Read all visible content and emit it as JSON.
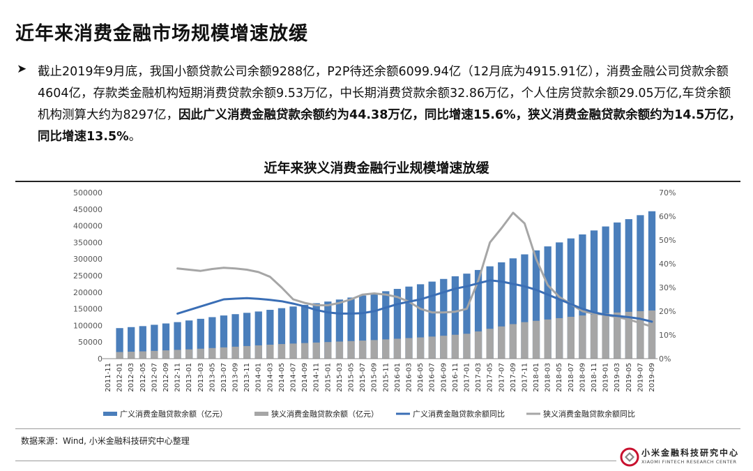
{
  "slide": {
    "title": "近年来消费金融市场规模增速放缓",
    "bullet_arrow": "➤",
    "bullet_text": "截止2019年9月底，我国小额贷款公司余额9288亿，P2P待还余额6099.94亿（12月底为4915.91亿），消费金融公司贷款余额4604亿，存款类金融机构短期消费贷款余额9.53万亿，中长期消费贷款余额32.86万亿，个人住房贷款余额29.05万亿,车贷余额机构测算大约为8297亿，",
    "bullet_bold": "因此广义消费金融贷款余额约为44.38万亿，同比增速15.6%，狭义消费金融贷款余额约为14.5万亿，同比增速13.5%",
    "bullet_end": "。",
    "source": "数据来源：Wind, 小米金融科技研究中心整理",
    "logo_cn": "小米金融科技研究中心",
    "logo_en": "XIAOMI FINTECH RESEARCH CENTER"
  },
  "colors": {
    "broad_bar": "#4a7ebb",
    "narrow_bar": "#a6a6a6",
    "broad_line": "#3a6eb5",
    "narrow_line": "#a6a6a6",
    "logo_red": "#c8102e"
  },
  "chart_data": {
    "type": "bar",
    "title": "近年来狭义消费金融行业规模增速放缓",
    "categories": [
      "2011-11",
      "2012-01",
      "2012-03",
      "2012-05",
      "2012-07",
      "2012-09",
      "2012-11",
      "2013-01",
      "2013-03",
      "2013-05",
      "2013-07",
      "2013-09",
      "2013-11",
      "2014-01",
      "2014-03",
      "2014-05",
      "2014-07",
      "2014-09",
      "2014-11",
      "2015-01",
      "2015-03",
      "2015-05",
      "2015-07",
      "2015-09",
      "2015-11",
      "2016-01",
      "2016-03",
      "2016-05",
      "2016-07",
      "2016-09",
      "2016-11",
      "2017-01",
      "2017-03",
      "2017-05",
      "2017-07",
      "2017-09",
      "2017-11",
      "2018-01",
      "2018-03",
      "2018-05",
      "2018-07",
      "2018-09",
      "2018-11",
      "2019-01",
      "2019-03",
      "2019-05",
      "2019-07",
      "2019-09"
    ],
    "bar_positions": [
      "2012-01",
      "2012-05",
      "2012-09",
      "2013-01",
      "2013-05",
      "2013-09",
      "2014-01",
      "2014-05",
      "2014-09",
      "2015-01",
      "2015-05",
      "2015-09",
      "2016-01",
      "2016-05",
      "2016-09",
      "2017-01",
      "2017-05",
      "2017-09",
      "2018-01",
      "2018-05",
      "2018-09",
      "2019-01",
      "2019-05",
      "2019-09"
    ],
    "left_ylim": [
      0,
      500000
    ],
    "left_yticks": [
      "0",
      "50000",
      "100000",
      "150000",
      "200000",
      "250000",
      "300000",
      "350000",
      "400000",
      "450000",
      "500000"
    ],
    "right_ylim": [
      0,
      70
    ],
    "right_yticks": [
      "0%",
      "10%",
      "20%",
      "30%",
      "40%",
      "50%",
      "60%",
      "70%"
    ],
    "series": [
      {
        "name": "广义消费金融贷款余额（亿元）",
        "kind": "bar",
        "axis": "left",
        "x": [
          "2012-01",
          "2012-03",
          "2012-05",
          "2012-07",
          "2012-09",
          "2012-11",
          "2013-01",
          "2013-03",
          "2013-05",
          "2013-07",
          "2013-09",
          "2013-11",
          "2014-01",
          "2014-03",
          "2014-05",
          "2014-07",
          "2014-09",
          "2014-11",
          "2015-01",
          "2015-03",
          "2015-05",
          "2015-07",
          "2015-09",
          "2015-11",
          "2016-01",
          "2016-03",
          "2016-05",
          "2016-07",
          "2016-09",
          "2016-11",
          "2017-01",
          "2017-03",
          "2017-05",
          "2017-07",
          "2017-09",
          "2017-11",
          "2018-01",
          "2018-03",
          "2018-05",
          "2018-07",
          "2018-09",
          "2018-11",
          "2019-01",
          "2019-03",
          "2019-05",
          "2019-07",
          "2019-09"
        ],
        "values": [
          92000,
          95000,
          98000,
          102000,
          106000,
          110000,
          115000,
          120000,
          125000,
          130000,
          134000,
          138000,
          142000,
          147000,
          152000,
          157000,
          162000,
          167000,
          172000,
          178000,
          184000,
          190000,
          196000,
          203000,
          210000,
          217000,
          224000,
          232000,
          240000,
          248000,
          256000,
          267000,
          278000,
          290000,
          302000,
          314000,
          326000,
          338000,
          350000,
          362000,
          374000,
          386000,
          398000,
          410000,
          420000,
          432000,
          443800
        ]
      },
      {
        "name": "狭义消费金融贷款余额（亿元）",
        "kind": "bar",
        "axis": "left",
        "x": [
          "2012-01",
          "2012-03",
          "2012-05",
          "2012-07",
          "2012-09",
          "2012-11",
          "2013-01",
          "2013-03",
          "2013-05",
          "2013-07",
          "2013-09",
          "2013-11",
          "2014-01",
          "2014-03",
          "2014-05",
          "2014-07",
          "2014-09",
          "2014-11",
          "2015-01",
          "2015-03",
          "2015-05",
          "2015-07",
          "2015-09",
          "2015-11",
          "2016-01",
          "2016-03",
          "2016-05",
          "2016-07",
          "2016-09",
          "2016-11",
          "2017-01",
          "2017-03",
          "2017-05",
          "2017-07",
          "2017-09",
          "2017-11",
          "2018-01",
          "2018-03",
          "2018-05",
          "2018-07",
          "2018-09",
          "2018-11",
          "2019-01",
          "2019-03",
          "2019-05",
          "2019-07",
          "2019-09"
        ],
        "values": [
          20000,
          21000,
          22000,
          23500,
          25000,
          26500,
          28000,
          30000,
          32000,
          34000,
          36000,
          38000,
          40000,
          42000,
          44000,
          45500,
          47000,
          48500,
          50000,
          51500,
          53000,
          54500,
          56000,
          58000,
          60000,
          62000,
          64000,
          66500,
          69000,
          72000,
          75000,
          82000,
          90000,
          97000,
          104000,
          110000,
          114000,
          118000,
          122000,
          126000,
          130000,
          133000,
          136000,
          139000,
          141000,
          143000,
          145000
        ]
      },
      {
        "name": "广义消费金融贷款余额同比",
        "kind": "line",
        "axis": "right",
        "x": [
          "2012-11",
          "2013-01",
          "2013-03",
          "2013-05",
          "2013-07",
          "2013-09",
          "2013-11",
          "2014-01",
          "2014-03",
          "2014-05",
          "2014-07",
          "2014-09",
          "2014-11",
          "2015-01",
          "2015-03",
          "2015-05",
          "2015-07",
          "2015-09",
          "2015-11",
          "2016-01",
          "2016-03",
          "2016-05",
          "2016-07",
          "2016-09",
          "2016-11",
          "2017-01",
          "2017-03",
          "2017-05",
          "2017-07",
          "2017-09",
          "2017-11",
          "2018-01",
          "2018-03",
          "2018-05",
          "2018-07",
          "2018-09",
          "2018-11",
          "2019-01",
          "2019-03",
          "2019-05",
          "2019-07",
          "2019-09"
        ],
        "values": [
          19,
          20.5,
          22,
          23.5,
          25,
          25.3,
          25.5,
          25.2,
          24.8,
          24.2,
          23.2,
          22,
          20.5,
          19.5,
          19,
          19,
          19.2,
          20,
          21.5,
          23,
          24,
          25,
          26.5,
          28,
          29.5,
          30.5,
          31.8,
          33,
          32.5,
          31.5,
          30.5,
          29,
          27,
          25,
          23,
          21,
          19.5,
          18.5,
          18,
          17.5,
          16.8,
          15.6
        ]
      },
      {
        "name": "狭义消费金融贷款余额同比",
        "kind": "line",
        "axis": "right",
        "x": [
          "2012-11",
          "2013-01",
          "2013-03",
          "2013-05",
          "2013-07",
          "2013-09",
          "2013-11",
          "2014-01",
          "2014-03",
          "2014-05",
          "2014-07",
          "2014-09",
          "2014-11",
          "2015-01",
          "2015-03",
          "2015-05",
          "2015-07",
          "2015-09",
          "2015-11",
          "2016-01",
          "2016-03",
          "2016-05",
          "2016-07",
          "2016-09",
          "2016-11",
          "2017-01",
          "2017-03",
          "2017-05",
          "2017-07",
          "2017-09",
          "2017-11",
          "2018-01",
          "2018-03",
          "2018-05",
          "2018-07",
          "2018-09",
          "2018-11",
          "2019-01",
          "2019-03",
          "2019-05",
          "2019-07",
          "2019-09"
        ],
        "values": [
          38,
          37.5,
          37,
          37.8,
          38.3,
          38,
          37.5,
          36.5,
          34.5,
          30,
          25,
          23.5,
          22.5,
          22.5,
          23.5,
          25,
          27,
          27.5,
          27,
          26,
          24,
          21,
          19.5,
          19.5,
          19.8,
          21,
          33,
          49,
          55,
          61.5,
          57,
          42,
          31,
          26,
          23,
          20,
          19,
          18.5,
          17.5,
          16.5,
          15,
          13.5
        ]
      }
    ]
  }
}
